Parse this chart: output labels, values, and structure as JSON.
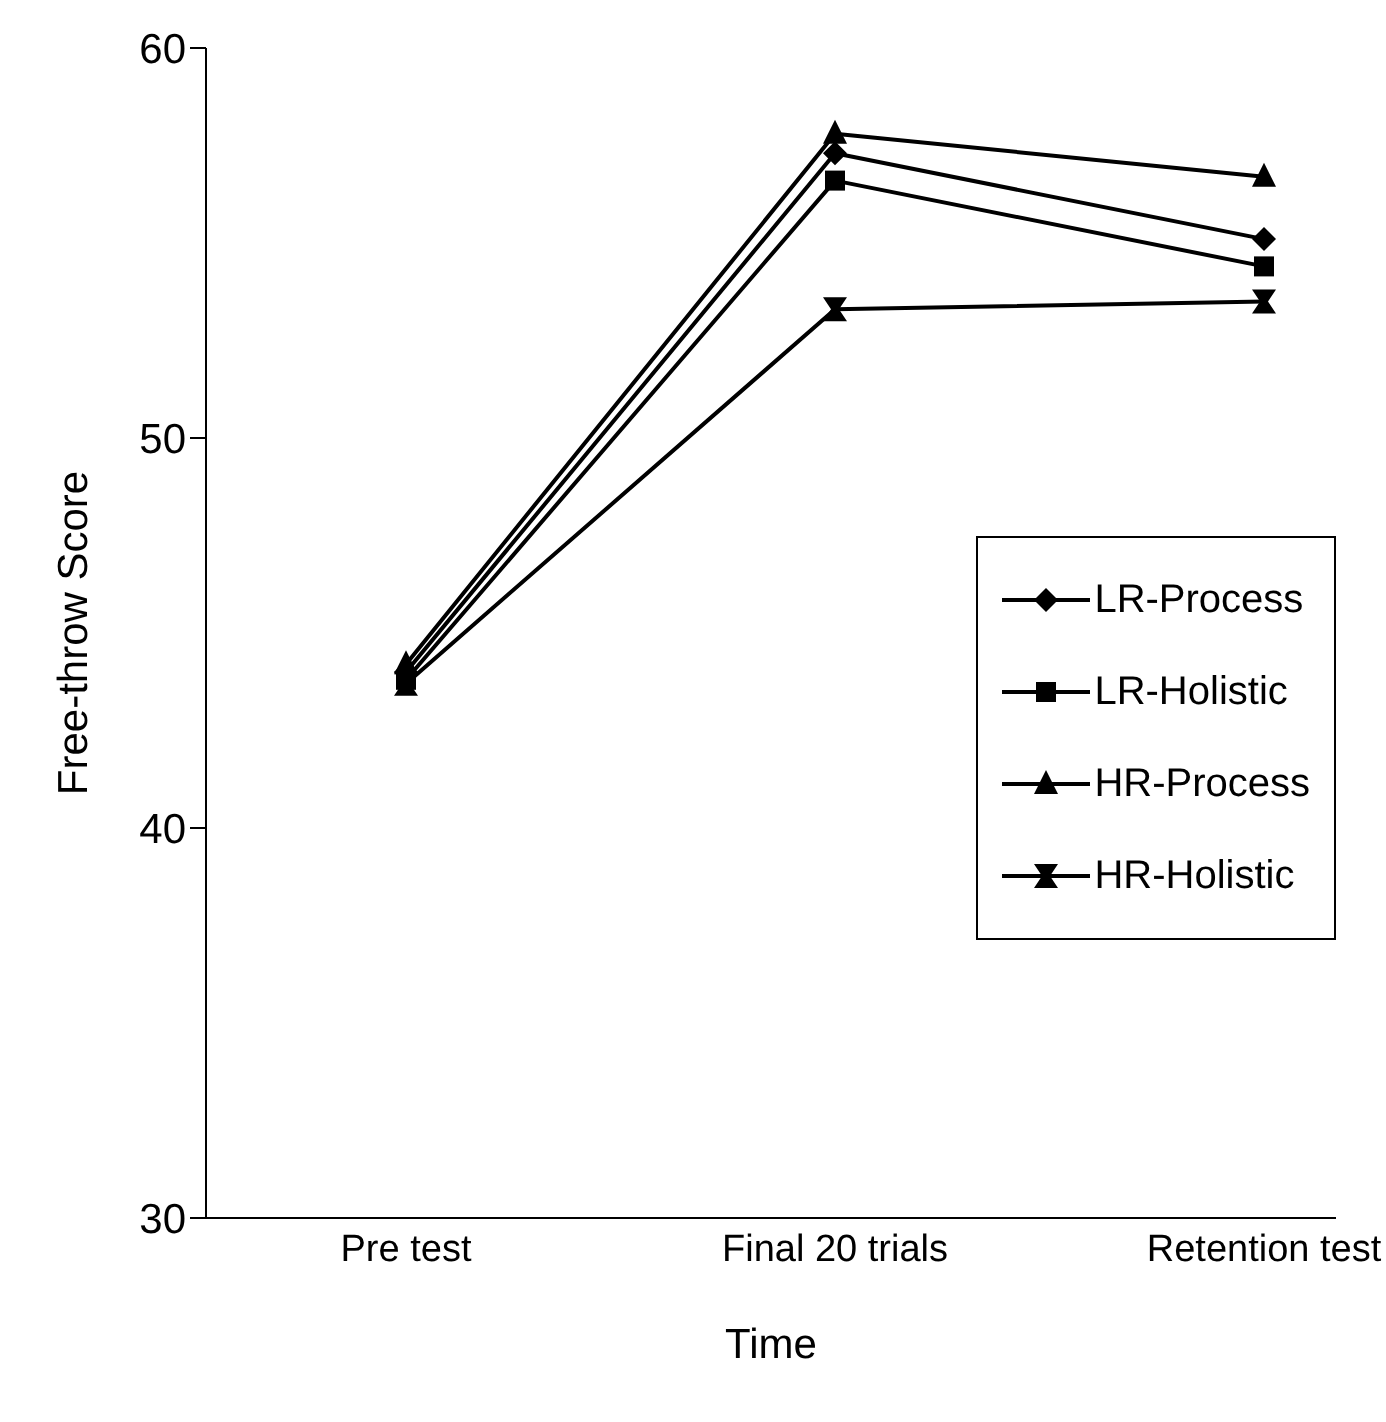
{
  "chart_data": {
    "type": "line",
    "xlabel": "Time",
    "ylabel": "Free-throw Score",
    "categories": [
      "Pre test",
      "Final 20 trials",
      "Retention test"
    ],
    "ylim": [
      30,
      60
    ],
    "yticks": [
      30,
      40,
      50,
      60
    ],
    "grid": false,
    "legend": "right",
    "line_style": "solid",
    "series": [
      {
        "name": "LR-Process",
        "color": "#000000",
        "marker": "diamond",
        "values": [
          44.0,
          57.3,
          55.1
        ]
      },
      {
        "name": "LR-Holistic",
        "color": "#000000",
        "marker": "square",
        "values": [
          43.8,
          56.6,
          54.4
        ]
      },
      {
        "name": "HR-Process",
        "color": "#000000",
        "marker": "triangle",
        "values": [
          44.2,
          57.8,
          56.7
        ]
      },
      {
        "name": "HR-Holistic",
        "color": "#000000",
        "marker": "cross",
        "values": [
          43.7,
          53.3,
          53.5
        ]
      }
    ]
  }
}
